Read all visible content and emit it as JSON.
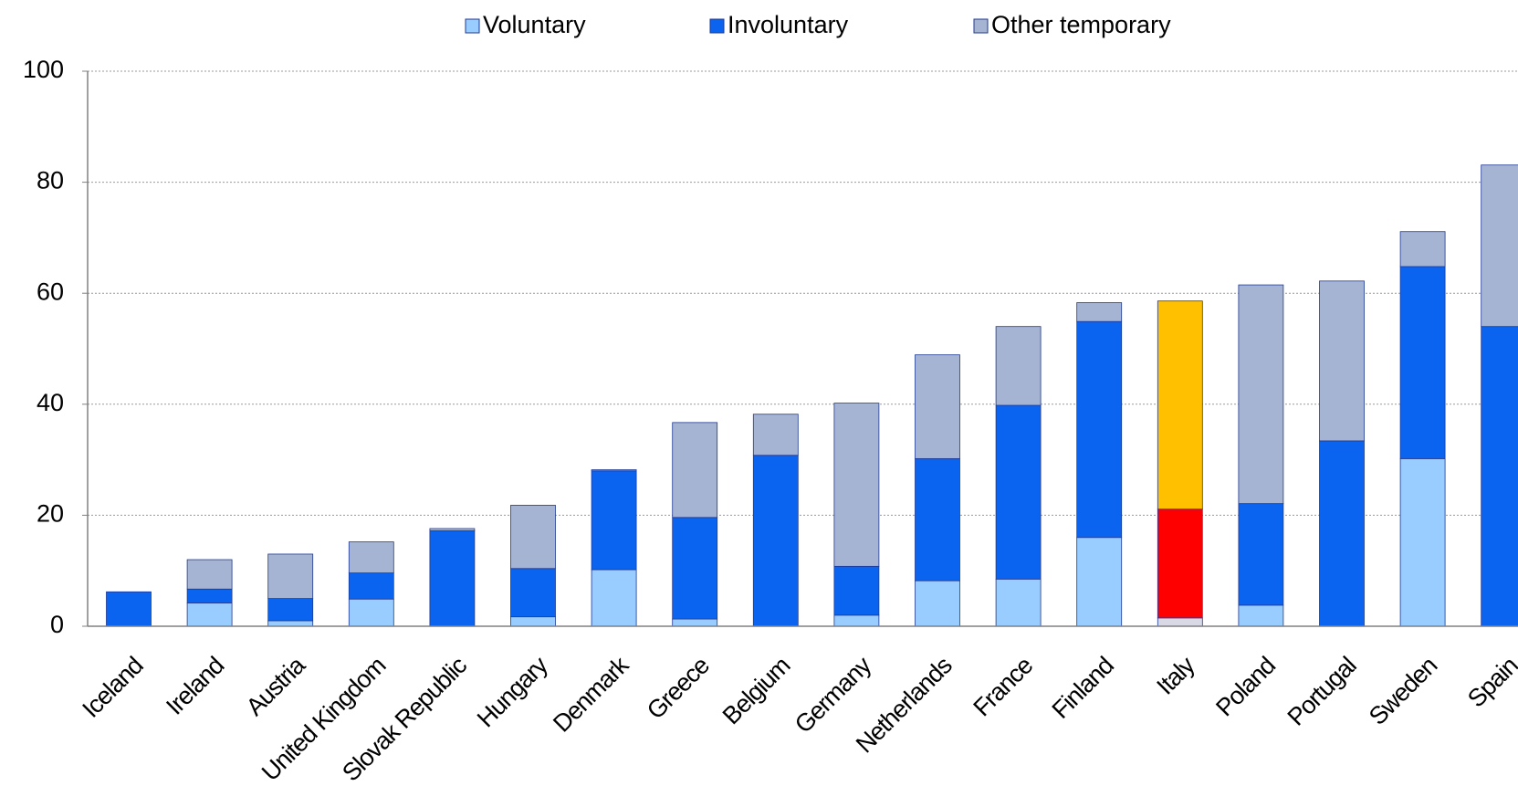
{
  "chart_data": {
    "type": "stacked_bar",
    "categories": [
      "Iceland",
      "Ireland",
      "Austria",
      "United Kingdom",
      "Slovak Republic",
      "Hungary",
      "Denmark",
      "Greece",
      "Belgium",
      "Germany",
      "Netherlands",
      "France",
      "Finland",
      "Italy",
      "Poland",
      "Portugal",
      "Sweden",
      "Spain"
    ],
    "series": [
      {
        "name": "Voluntary",
        "color": "#99ccff",
        "highlight_color": "#d9d9e6",
        "values": [
          0,
          4.2,
          1,
          4.9,
          0,
          1.7,
          10.2,
          1.3,
          0,
          2,
          8.2,
          8.5,
          16,
          1.5,
          3.8,
          0,
          30.2,
          0
        ]
      },
      {
        "name": "Involuntary",
        "color": "#0a64f0",
        "highlight_color": "#ff0000",
        "values": [
          6.2,
          2.5,
          4,
          4.7,
          17.2,
          8.7,
          17.8,
          18.3,
          30.8,
          8.8,
          22,
          31.3,
          38.9,
          19.6,
          18.3,
          33.4,
          34.6,
          54
        ]
      },
      {
        "name": "Other temporary",
        "color": "#a6b4d4",
        "highlight_color": "#ffc000",
        "values": [
          0,
          5.3,
          8,
          5.6,
          0.4,
          11.4,
          0.2,
          17.1,
          7.4,
          29.4,
          18.7,
          14.2,
          3.4,
          37.5,
          39.4,
          28.8,
          6.3,
          29.1
        ]
      }
    ],
    "highlight_index": 13,
    "ylim": [
      0,
      100
    ],
    "yticks": [
      0,
      20,
      40,
      60,
      80,
      100
    ],
    "grid": true,
    "legend": "top"
  }
}
